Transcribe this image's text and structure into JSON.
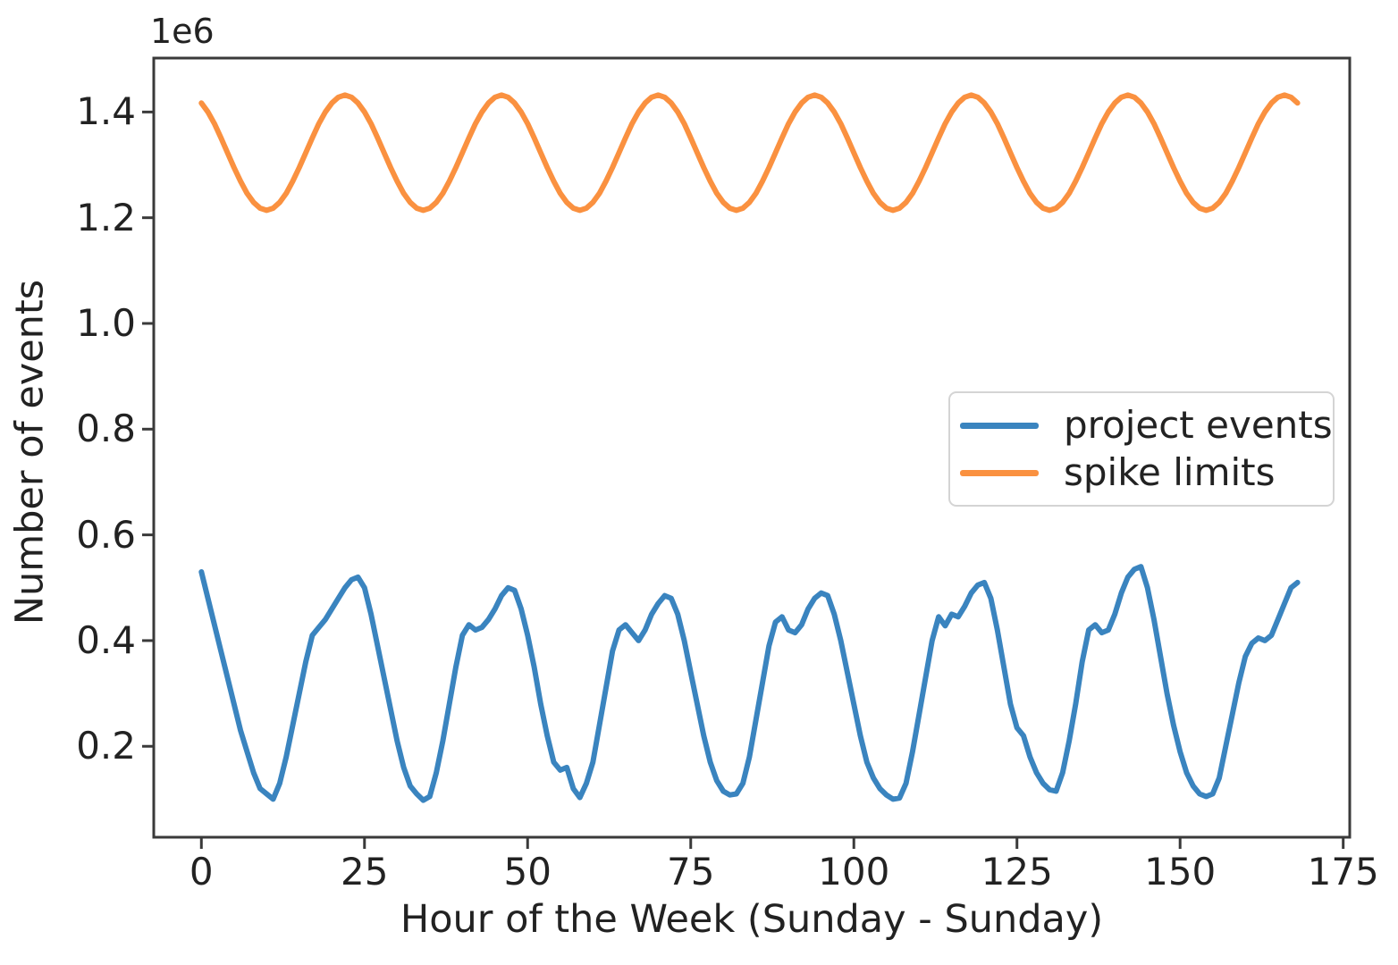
{
  "figure": {
    "background": "#ffffff",
    "axis_color": "#3a3a3a",
    "text_color": "#222222"
  },
  "chart_data": {
    "type": "line",
    "title": "",
    "xlabel": "Hour of the Week (Sunday - Sunday)",
    "ylabel": "Number of events",
    "y_axis_offset_label": "1e6",
    "y_unit_multiplier": 1000000,
    "grid": false,
    "legend_position": "center right",
    "xlim": [
      -7.3,
      176
    ],
    "ylim": [
      0.028,
      1.502
    ],
    "xticks": [
      0,
      25,
      50,
      75,
      100,
      125,
      150,
      175
    ],
    "xtick_labels": [
      "0",
      "25",
      "50",
      "75",
      "100",
      "125",
      "150",
      "175"
    ],
    "yticks": [
      0.2,
      0.4,
      0.6,
      0.8,
      1.0,
      1.2,
      1.4
    ],
    "ytick_labels": [
      "0.2",
      "0.4",
      "0.6",
      "0.8",
      "1.0",
      "1.2",
      "1.4"
    ],
    "x": [
      0,
      1,
      2,
      3,
      4,
      5,
      6,
      7,
      8,
      9,
      10,
      11,
      12,
      13,
      14,
      15,
      16,
      17,
      18,
      19,
      20,
      21,
      22,
      23,
      24,
      25,
      26,
      27,
      28,
      29,
      30,
      31,
      32,
      33,
      34,
      35,
      36,
      37,
      38,
      39,
      40,
      41,
      42,
      43,
      44,
      45,
      46,
      47,
      48,
      49,
      50,
      51,
      52,
      53,
      54,
      55,
      56,
      57,
      58,
      59,
      60,
      61,
      62,
      63,
      64,
      65,
      66,
      67,
      68,
      69,
      70,
      71,
      72,
      73,
      74,
      75,
      76,
      77,
      78,
      79,
      80,
      81,
      82,
      83,
      84,
      85,
      86,
      87,
      88,
      89,
      90,
      91,
      92,
      93,
      94,
      95,
      96,
      97,
      98,
      99,
      100,
      101,
      102,
      103,
      104,
      105,
      106,
      107,
      108,
      109,
      110,
      111,
      112,
      113,
      114,
      115,
      116,
      117,
      118,
      119,
      120,
      121,
      122,
      123,
      124,
      125,
      126,
      127,
      128,
      129,
      130,
      131,
      132,
      133,
      134,
      135,
      136,
      137,
      138,
      139,
      140,
      141,
      142,
      143,
      144,
      145,
      146,
      147,
      148,
      149,
      150,
      151,
      152,
      153,
      154,
      155,
      156,
      157,
      158,
      159,
      160,
      161,
      162,
      163,
      164,
      165,
      166,
      167,
      168
    ],
    "series": [
      {
        "name": "project events",
        "color": "#3a84bf",
        "values": [
          0.53,
          0.48,
          0.43,
          0.38,
          0.33,
          0.28,
          0.23,
          0.19,
          0.15,
          0.12,
          0.11,
          0.1,
          0.13,
          0.18,
          0.24,
          0.3,
          0.36,
          0.41,
          0.425,
          0.44,
          0.46,
          0.48,
          0.5,
          0.515,
          0.52,
          0.5,
          0.45,
          0.39,
          0.33,
          0.27,
          0.21,
          0.16,
          0.125,
          0.11,
          0.098,
          0.105,
          0.15,
          0.21,
          0.28,
          0.35,
          0.41,
          0.43,
          0.42,
          0.425,
          0.44,
          0.46,
          0.485,
          0.5,
          0.495,
          0.46,
          0.41,
          0.35,
          0.28,
          0.22,
          0.17,
          0.155,
          0.16,
          0.12,
          0.103,
          0.13,
          0.17,
          0.24,
          0.31,
          0.38,
          0.42,
          0.43,
          0.415,
          0.4,
          0.42,
          0.45,
          0.47,
          0.485,
          0.48,
          0.45,
          0.4,
          0.34,
          0.28,
          0.22,
          0.17,
          0.135,
          0.115,
          0.108,
          0.11,
          0.13,
          0.18,
          0.25,
          0.32,
          0.39,
          0.435,
          0.445,
          0.42,
          0.415,
          0.43,
          0.46,
          0.48,
          0.49,
          0.485,
          0.45,
          0.4,
          0.34,
          0.28,
          0.22,
          0.17,
          0.14,
          0.12,
          0.108,
          0.1,
          0.102,
          0.13,
          0.19,
          0.26,
          0.33,
          0.4,
          0.445,
          0.428,
          0.45,
          0.445,
          0.465,
          0.49,
          0.505,
          0.51,
          0.48,
          0.42,
          0.35,
          0.28,
          0.235,
          0.22,
          0.18,
          0.15,
          0.13,
          0.118,
          0.115,
          0.15,
          0.21,
          0.28,
          0.36,
          0.42,
          0.43,
          0.415,
          0.42,
          0.45,
          0.49,
          0.52,
          0.535,
          0.54,
          0.5,
          0.44,
          0.37,
          0.3,
          0.24,
          0.19,
          0.15,
          0.125,
          0.11,
          0.105,
          0.11,
          0.14,
          0.2,
          0.26,
          0.32,
          0.37,
          0.395,
          0.405,
          0.4,
          0.41,
          0.44,
          0.47,
          0.5,
          0.51
        ]
      },
      {
        "name": "spike limits",
        "color": "#fa9140",
        "values": [
          1.417,
          1.4,
          1.378,
          1.351,
          1.323,
          1.295,
          1.269,
          1.246,
          1.229,
          1.218,
          1.214,
          1.218,
          1.229,
          1.246,
          1.269,
          1.295,
          1.323,
          1.351,
          1.378,
          1.4,
          1.417,
          1.428,
          1.432,
          1.428,
          1.417,
          1.4,
          1.378,
          1.351,
          1.323,
          1.295,
          1.269,
          1.246,
          1.229,
          1.218,
          1.214,
          1.218,
          1.229,
          1.246,
          1.269,
          1.295,
          1.323,
          1.351,
          1.378,
          1.4,
          1.417,
          1.428,
          1.432,
          1.428,
          1.417,
          1.4,
          1.378,
          1.351,
          1.323,
          1.295,
          1.269,
          1.246,
          1.229,
          1.218,
          1.214,
          1.218,
          1.229,
          1.246,
          1.269,
          1.295,
          1.323,
          1.351,
          1.378,
          1.4,
          1.417,
          1.428,
          1.432,
          1.428,
          1.417,
          1.4,
          1.378,
          1.351,
          1.323,
          1.295,
          1.269,
          1.246,
          1.229,
          1.218,
          1.214,
          1.218,
          1.229,
          1.246,
          1.269,
          1.295,
          1.323,
          1.351,
          1.378,
          1.4,
          1.417,
          1.428,
          1.432,
          1.428,
          1.417,
          1.4,
          1.378,
          1.351,
          1.323,
          1.295,
          1.269,
          1.246,
          1.229,
          1.218,
          1.214,
          1.218,
          1.229,
          1.246,
          1.269,
          1.295,
          1.323,
          1.351,
          1.378,
          1.4,
          1.417,
          1.428,
          1.432,
          1.428,
          1.417,
          1.4,
          1.378,
          1.351,
          1.323,
          1.295,
          1.269,
          1.246,
          1.229,
          1.218,
          1.214,
          1.218,
          1.229,
          1.246,
          1.269,
          1.295,
          1.323,
          1.351,
          1.378,
          1.4,
          1.417,
          1.428,
          1.432,
          1.428,
          1.417,
          1.4,
          1.378,
          1.351,
          1.323,
          1.295,
          1.269,
          1.246,
          1.229,
          1.218,
          1.214,
          1.218,
          1.229,
          1.246,
          1.269,
          1.295,
          1.323,
          1.351,
          1.378,
          1.4,
          1.417,
          1.428,
          1.432,
          1.428,
          1.417
        ]
      }
    ]
  }
}
